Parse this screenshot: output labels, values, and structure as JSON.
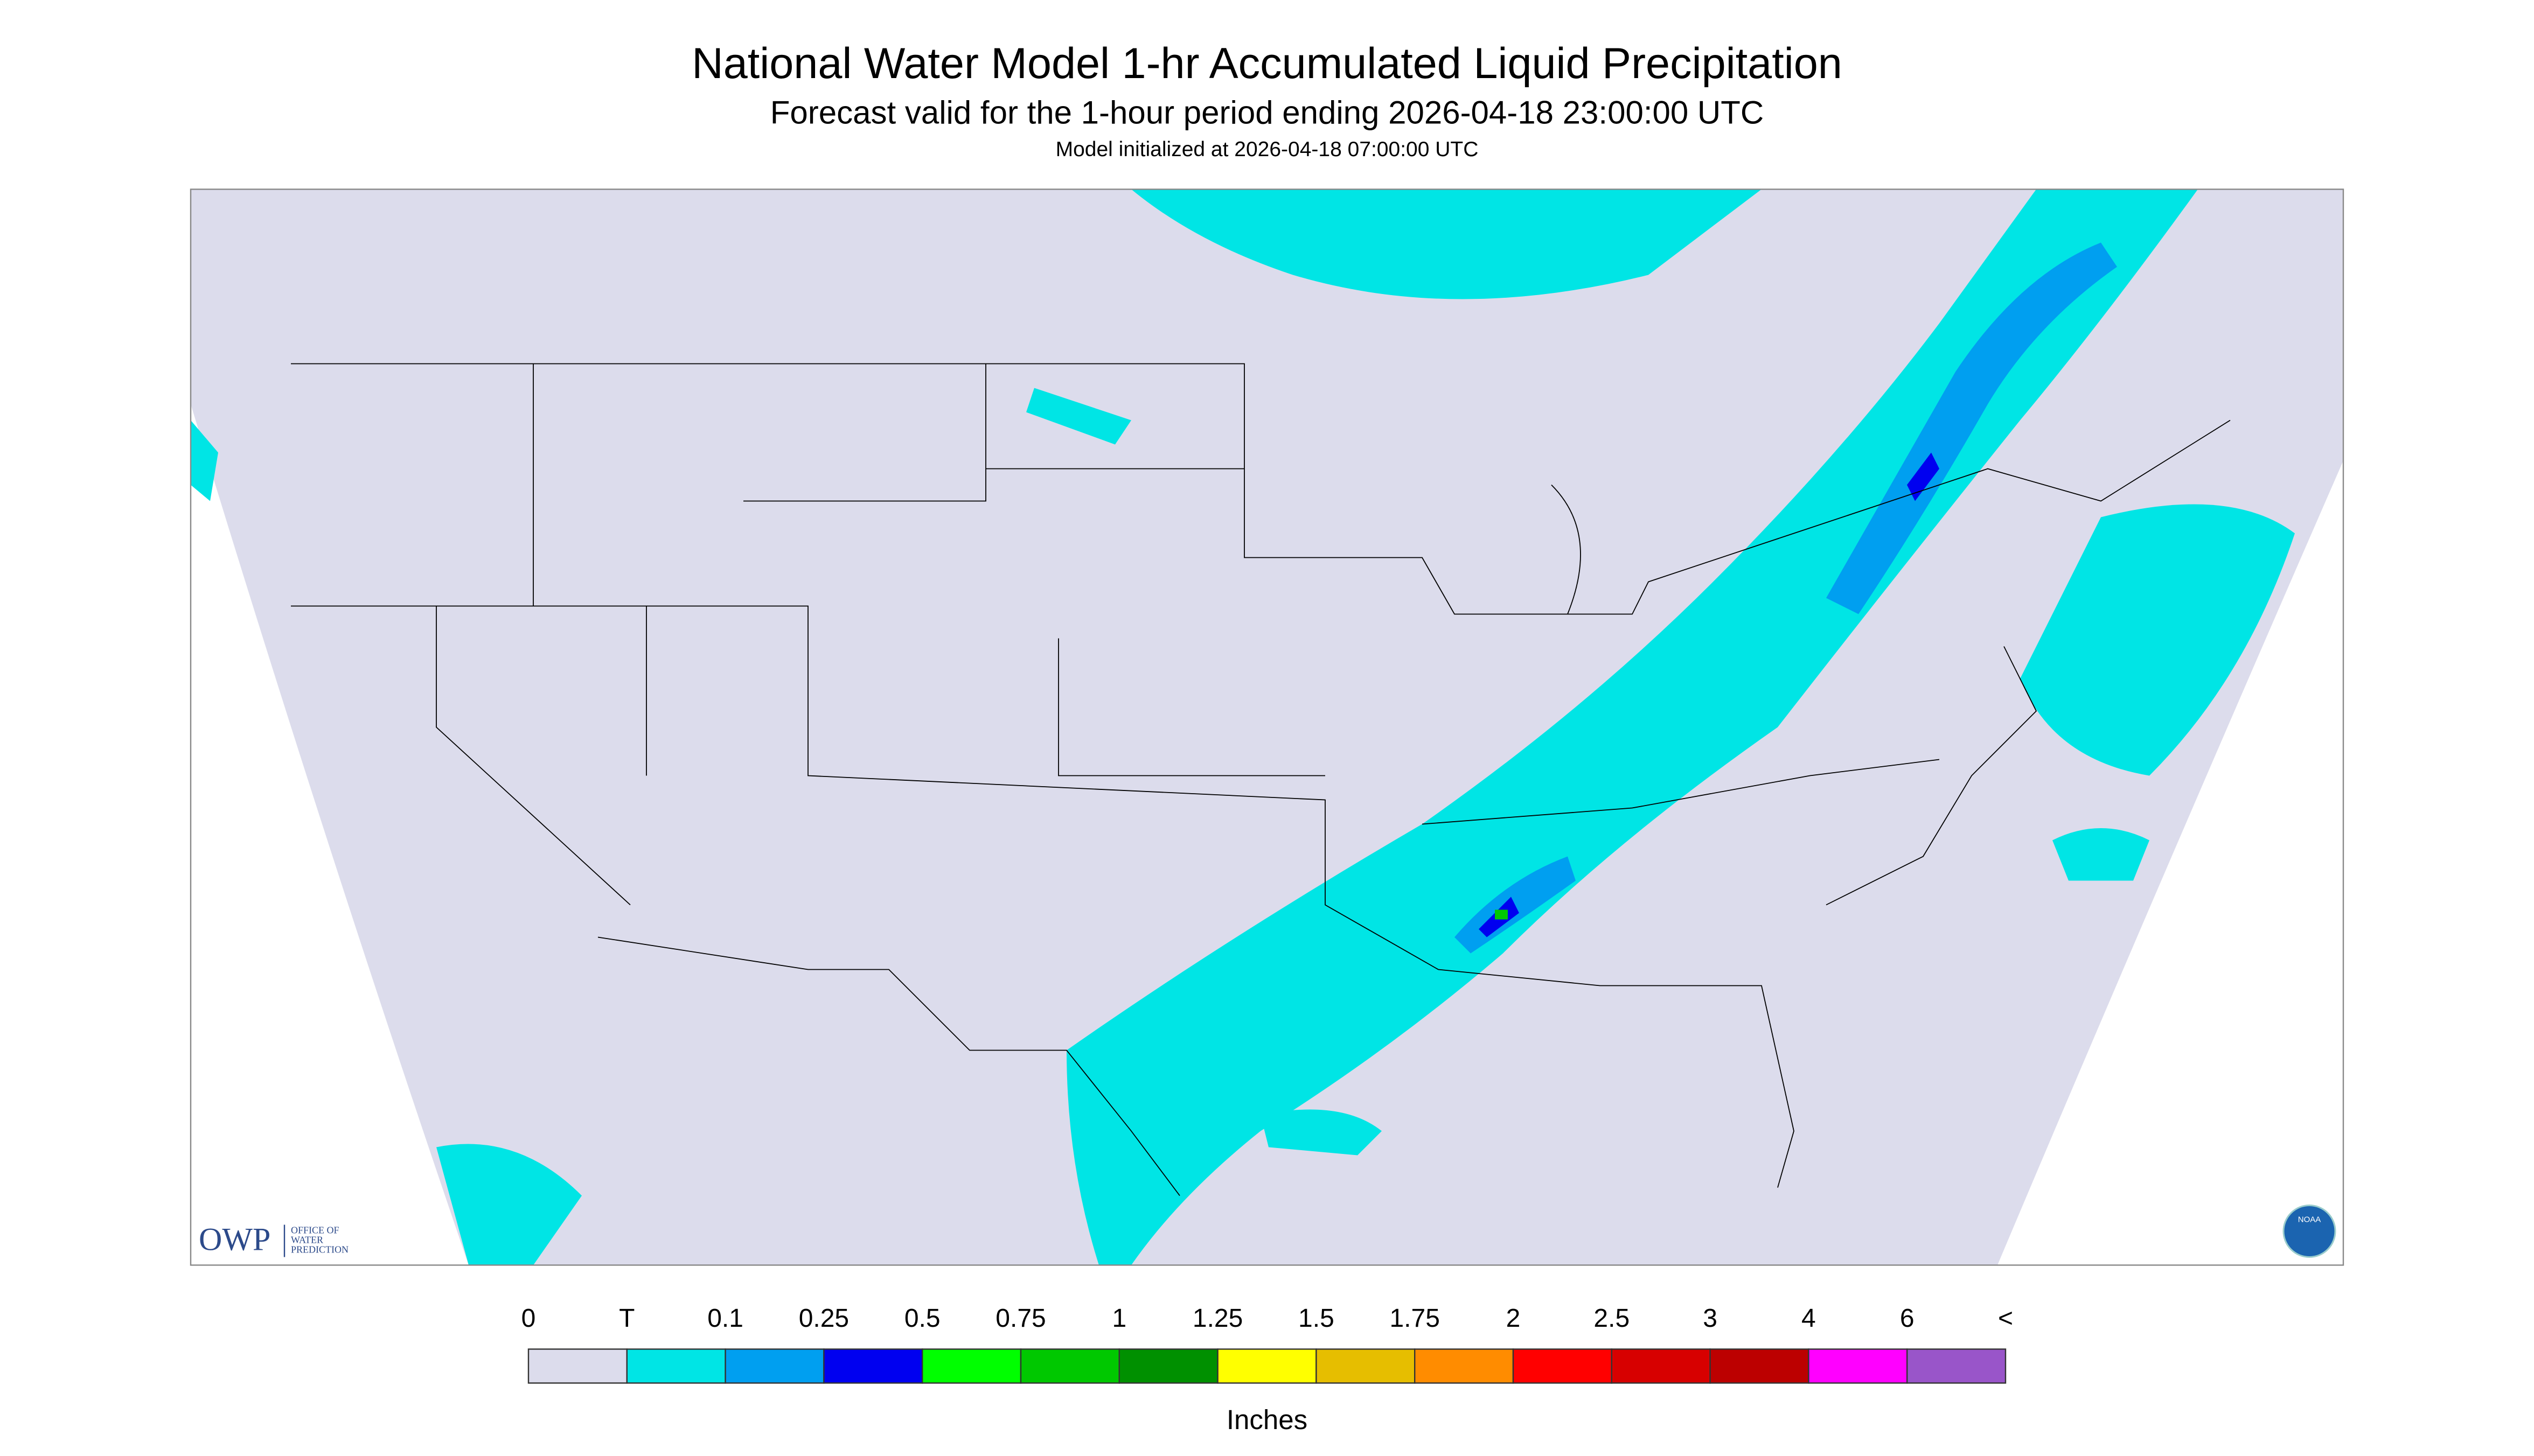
{
  "header": {
    "title": "National Water Model 1-hr Accumulated Liquid Precipitation",
    "subtitle": "Forecast valid for the 1-hour period ending 2026-04-18 23:00:00 UTC",
    "note": "Model initialized at 2026-04-18 07:00:00 UTC"
  },
  "logo": {
    "short": "OWP",
    "long": [
      "OFFICE OF",
      "WATER",
      "PREDICTION"
    ],
    "badge": "NOAA"
  },
  "legend": {
    "labels": [
      "0",
      "T",
      "0.1",
      "0.25",
      "0.5",
      "0.75",
      "1",
      "1.25",
      "1.5",
      "1.75",
      "2",
      "2.5",
      "3",
      "4",
      "6",
      "<"
    ],
    "colors": [
      "#dcdcec",
      "#00e5e5",
      "#009ff0",
      "#0000f0",
      "#00ff00",
      "#00c800",
      "#009000",
      "#ffff00",
      "#e6be00",
      "#ff8c00",
      "#ff0000",
      "#d70000",
      "#bc0000",
      "#ff00ff",
      "#9955c9"
    ],
    "unit": "Inches"
  }
}
